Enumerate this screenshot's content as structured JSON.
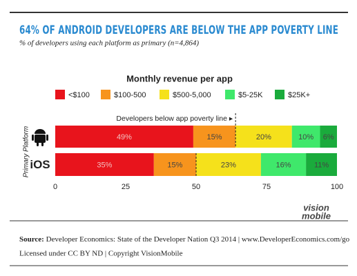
{
  "chart_data": {
    "type": "stacked-bar-horizontal",
    "title": "64% OF ANDROID DEVELOPERS ARE BELOW THE APP POVERTY LINE",
    "subtitle": "% of developers using each platform as primary (n=4,864)",
    "legend_title": "Monthly revenue per app",
    "y_label": "Primary Platform",
    "categories": [
      null,
      "iOS"
    ],
    "series": [
      {
        "name": "<$100",
        "color": "#e8141c",
        "values": [
          49,
          35
        ],
        "value_labels": [
          "49%",
          "35%"
        ]
      },
      {
        "name": "$100-500",
        "color": "#f7941d",
        "values": [
          15,
          15
        ],
        "value_labels": [
          "15%",
          "15%"
        ]
      },
      {
        "name": "$500-5,000",
        "color": "#f5e11b",
        "values": [
          20,
          23
        ],
        "value_labels": [
          "20%",
          "23%"
        ]
      },
      {
        "name": "$5-25K",
        "color": "#3fe86b",
        "values": [
          10,
          16
        ],
        "value_labels": [
          "10%",
          "16%"
        ]
      },
      {
        "name": "$25K+",
        "color": "#1aab3c",
        "values": [
          6,
          11
        ],
        "value_labels": [
          "6%",
          "11%"
        ]
      }
    ],
    "poverty_line": {
      "label": "Developers below app poverty line ▸",
      "values": [
        64,
        50
      ]
    },
    "xlim": [
      0,
      100
    ],
    "xticks": [
      0,
      25,
      50,
      75,
      100
    ]
  },
  "logo": [
    "vision",
    "mobile"
  ],
  "footer": {
    "source_label": "Source:",
    "source": "Developer Economics: State of the Developer Nation Q3 2014 | www.DeveloperEconomics.com/go",
    "license": "Licensed under CC BY ND | Copyright VisionMobile"
  }
}
